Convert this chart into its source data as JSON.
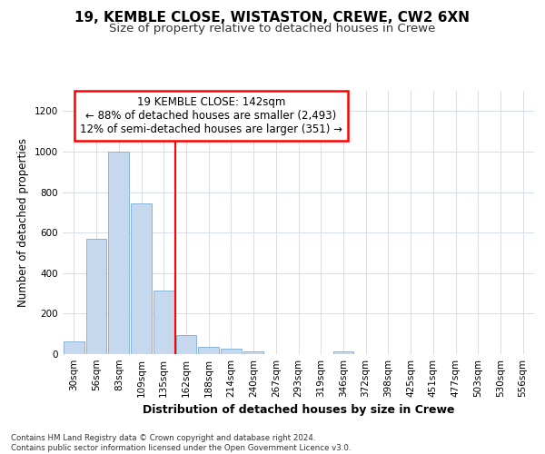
{
  "title1": "19, KEMBLE CLOSE, WISTASTON, CREWE, CW2 6XN",
  "title2": "Size of property relative to detached houses in Crewe",
  "xlabel": "Distribution of detached houses by size in Crewe",
  "ylabel": "Number of detached properties",
  "categories": [
    "30sqm",
    "56sqm",
    "83sqm",
    "109sqm",
    "135sqm",
    "162sqm",
    "188sqm",
    "214sqm",
    "240sqm",
    "267sqm",
    "293sqm",
    "319sqm",
    "346sqm",
    "372sqm",
    "398sqm",
    "425sqm",
    "451sqm",
    "477sqm",
    "503sqm",
    "530sqm",
    "556sqm"
  ],
  "values": [
    65,
    570,
    1000,
    745,
    315,
    95,
    38,
    25,
    15,
    0,
    0,
    0,
    15,
    0,
    0,
    0,
    0,
    0,
    0,
    0,
    0
  ],
  "bar_color": "#c5d8ed",
  "bar_edge_color": "#7aaed4",
  "vline_x": 4.5,
  "vline_color": "red",
  "annotation_text": "19 KEMBLE CLOSE: 142sqm\n← 88% of detached houses are smaller (2,493)\n12% of semi-detached houses are larger (351) →",
  "annotation_box_color": "white",
  "annotation_box_edge": "red",
  "ylim": [
    0,
    1300
  ],
  "yticks": [
    0,
    200,
    400,
    600,
    800,
    1000,
    1200
  ],
  "footnote": "Contains HM Land Registry data © Crown copyright and database right 2024.\nContains public sector information licensed under the Open Government Licence v3.0.",
  "bg_color": "#ffffff",
  "plot_bg_color": "#ffffff",
  "grid_color": "#d0d8e8",
  "title1_fontsize": 11,
  "title2_fontsize": 9.5,
  "xlabel_fontsize": 9,
  "ylabel_fontsize": 8.5,
  "tick_fontsize": 7.5,
  "annotation_fontsize": 8.5
}
